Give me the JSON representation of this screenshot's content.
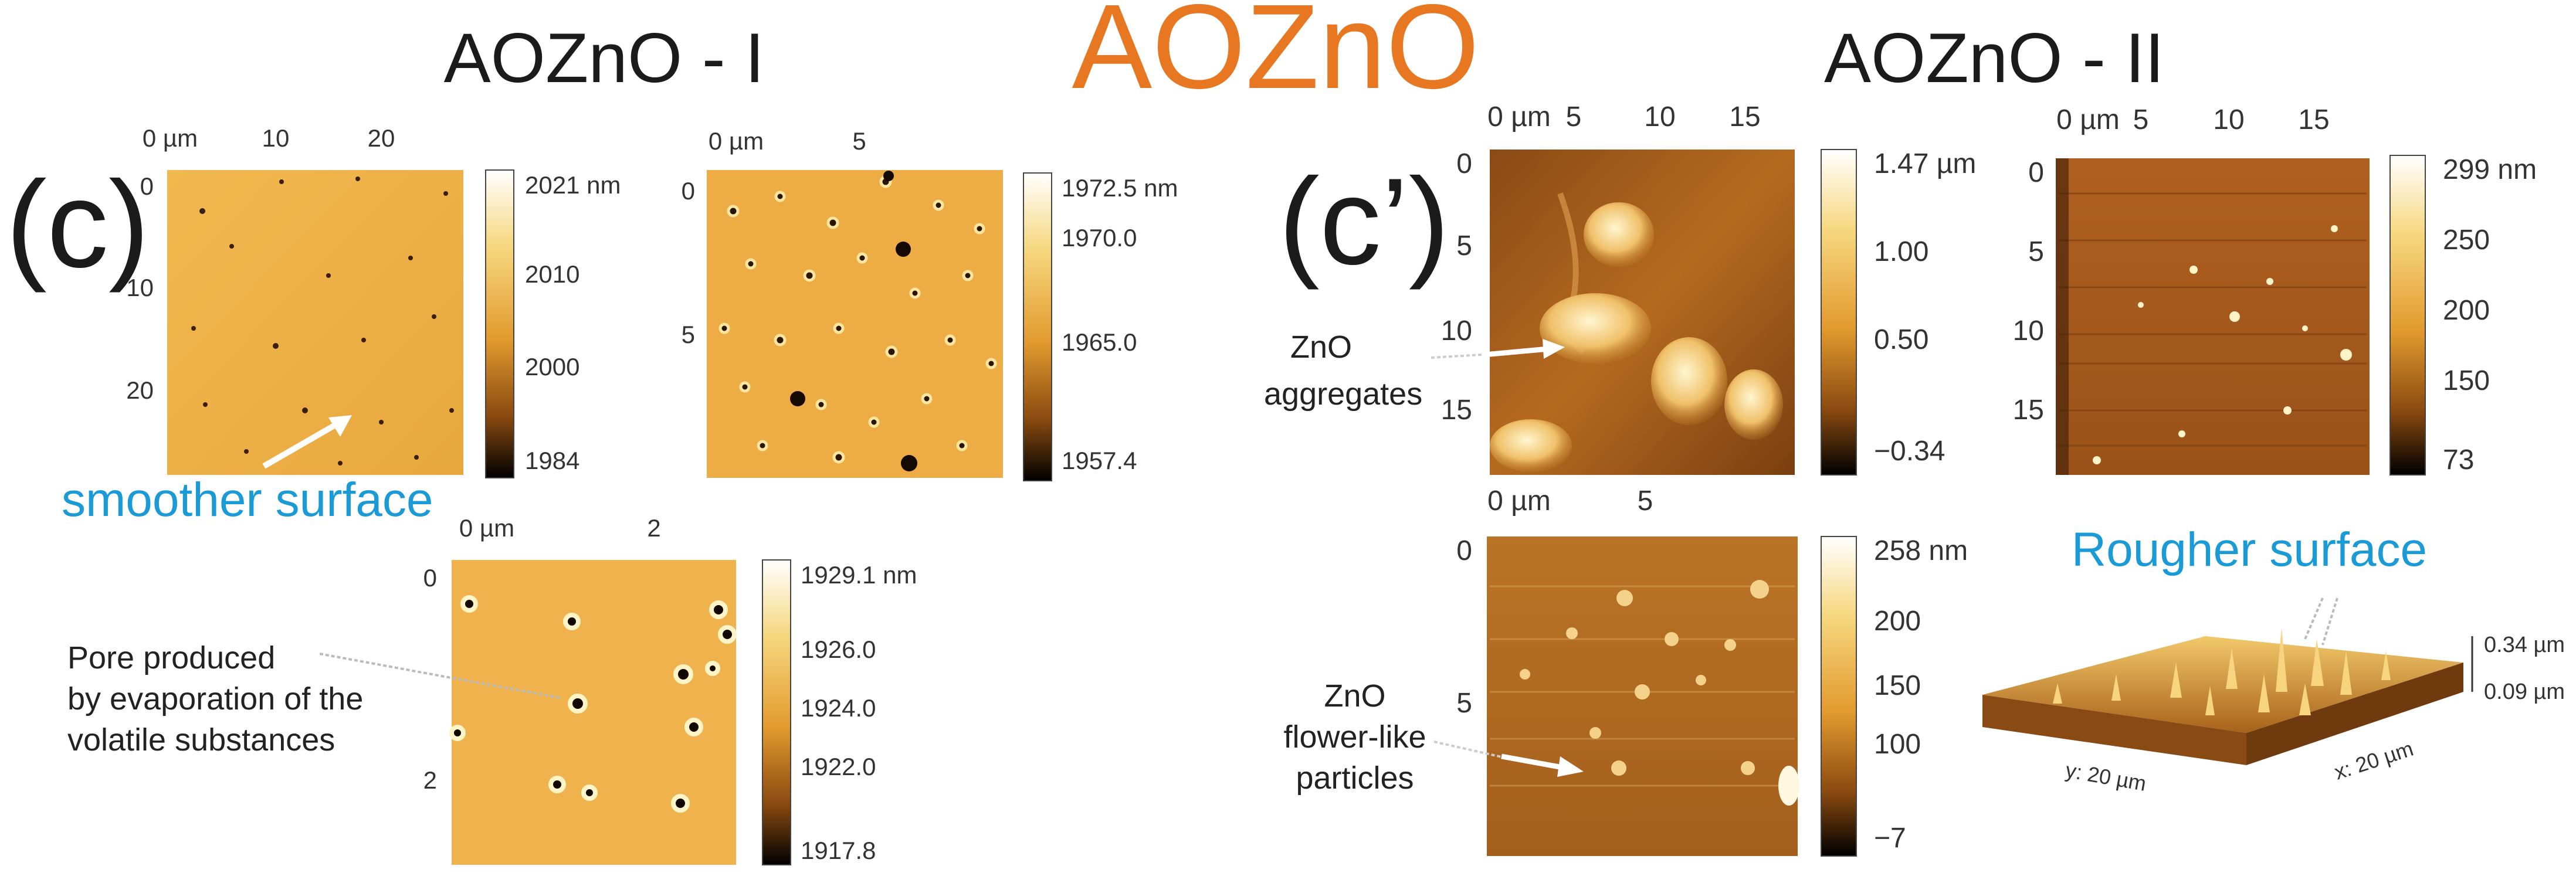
{
  "figure": {
    "title": "AOZnO",
    "left_title": "AOZnO - I",
    "right_title": "AOZnO - II",
    "left_panel_label": "(c)",
    "right_panel_label": "(c’)",
    "colors": {
      "title_orange": "#E87722",
      "annotation_blue": "#1A9AD6",
      "afm_dark": "#1a0e04",
      "afm_mid": "#c07a22",
      "afm_light": "#fff8dc"
    }
  },
  "panels": {
    "i1": {
      "x_ticks": [
        "0 µm",
        "10",
        "20"
      ],
      "y_ticks": [
        "0",
        "10",
        "20"
      ],
      "colorbar": [
        "2021 nm",
        "2010",
        "2000",
        "1984"
      ]
    },
    "i2": {
      "x_ticks": [
        "0 µm",
        "5"
      ],
      "y_ticks": [
        "0",
        "5"
      ],
      "colorbar": [
        "1972.5 nm",
        "1970.0",
        "1965.0",
        "1957.4"
      ]
    },
    "i3": {
      "x_ticks": [
        "0 µm",
        "2"
      ],
      "y_ticks": [
        "0",
        "2"
      ],
      "colorbar": [
        "1929.1 nm",
        "1926.0",
        "1924.0",
        "1922.0",
        "1917.8"
      ]
    },
    "ii1": {
      "x_ticks": [
        "0 µm",
        "5",
        "10",
        "15"
      ],
      "y_ticks": [
        "0",
        "5",
        "10",
        "15"
      ],
      "colorbar": [
        "1.47 µm",
        "1.00",
        "0.50",
        "−0.34"
      ]
    },
    "ii2": {
      "x_ticks": [
        "0 µm",
        "5",
        "10",
        "15"
      ],
      "y_ticks": [
        "0",
        "5",
        "10",
        "15"
      ],
      "colorbar": [
        "299 nm",
        "250",
        "200",
        "150",
        "73"
      ]
    },
    "ii3": {
      "x_ticks": [
        "0 µm",
        "5"
      ],
      "y_ticks": [
        "0",
        "5"
      ],
      "colorbar": [
        "258 nm",
        "200",
        "150",
        "100",
        "−7"
      ]
    },
    "surface3d": {
      "z_top": "0.34 µm",
      "z_bottom": "0.09 µm",
      "y_axis": "y: 20 µm",
      "x_axis": "x: 20 µm"
    }
  },
  "annotations": {
    "smoother": "smoother surface",
    "pore": [
      "Pore produced",
      "by evaporation of the",
      "volatile substances"
    ],
    "aggregates": [
      "ZnO",
      "aggregates"
    ],
    "flower": [
      "ZnO",
      "flower-like",
      "particles"
    ],
    "rougher": "Rougher surface"
  }
}
